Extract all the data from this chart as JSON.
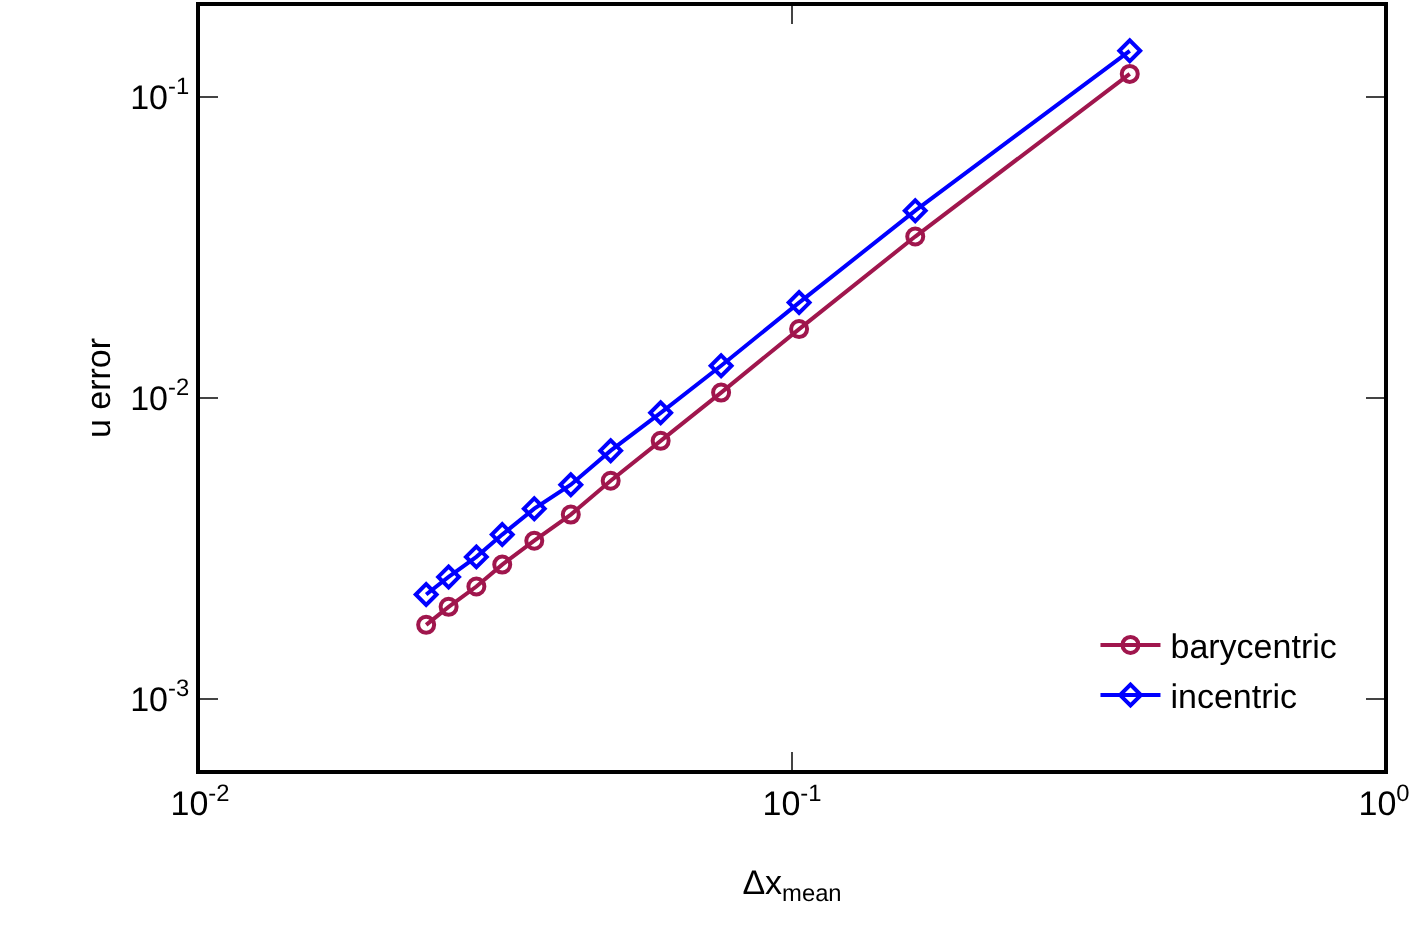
{
  "chart_data": {
    "type": "line",
    "xlabel": "Δx$_{mean}$",
    "ylabel": "u error",
    "log": "xy",
    "xlim": [
      0.01,
      1
    ],
    "ylim": [
      0.00058,
      0.2
    ],
    "xticks": [
      {
        "value": 0.01,
        "label": "10$^{-2}$"
      },
      {
        "value": 0.1,
        "label": "10$^{-1}$"
      },
      {
        "value": 1,
        "label": "10$^{0}$"
      }
    ],
    "yticks": [
      {
        "value": 0.001,
        "label": "10$^{-3}$"
      },
      {
        "value": 0.01,
        "label": "10$^{-2}$"
      },
      {
        "value": 0.1,
        "label": "10$^{-1}$"
      }
    ],
    "grid": false,
    "legend": "bottom right",
    "line_style": "solid",
    "x": [
      0.0241,
      0.0263,
      0.0293,
      0.0324,
      0.0367,
      0.0423,
      0.0494,
      0.06,
      0.0759,
      0.1028,
      0.1615,
      0.372
    ],
    "series": [
      {
        "name": "barycentric",
        "color": "#a0164d",
        "marker": "circle",
        "values": [
          0.00176,
          0.00202,
          0.00236,
          0.00279,
          0.00335,
          0.00409,
          0.0053,
          0.00719,
          0.0104,
          0.0169,
          0.0343,
          0.119
        ]
      },
      {
        "name": "incentric",
        "color": "#0000ff",
        "marker": "diamond",
        "values": [
          0.00222,
          0.00254,
          0.00296,
          0.00351,
          0.00428,
          0.00514,
          0.00667,
          0.00891,
          0.01277,
          0.0207,
          0.0418,
          0.142
        ]
      }
    ]
  }
}
